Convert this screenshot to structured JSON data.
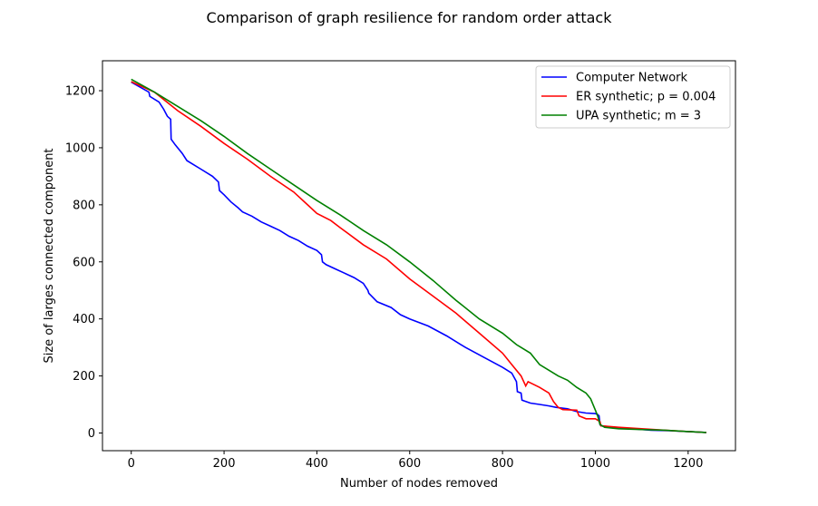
{
  "chart_data": {
    "type": "line",
    "title": "Comparison of graph resilience for random order attack",
    "xlabel": "Number of nodes removed",
    "ylabel": "Size of larges connected component",
    "xlim": [
      -62,
      1302
    ],
    "ylim": [
      -62,
      1305
    ],
    "xticks": [
      0,
      200,
      400,
      600,
      800,
      1000,
      1200
    ],
    "yticks": [
      0,
      200,
      400,
      600,
      800,
      1000,
      1200
    ],
    "grid": false,
    "legend_position": "top-right",
    "series": [
      {
        "name": "Computer Network",
        "color": "#0000ff",
        "x": [
          0,
          38,
          40,
          60,
          70,
          78,
          85,
          86,
          95,
          110,
          120,
          150,
          175,
          188,
          190,
          200,
          215,
          230,
          240,
          260,
          280,
          300,
          320,
          340,
          360,
          380,
          400,
          410,
          412,
          420,
          440,
          460,
          480,
          500,
          510,
          512,
          530,
          560,
          580,
          600,
          640,
          680,
          720,
          760,
          800,
          820,
          830,
          832,
          840,
          842,
          860,
          880,
          900,
          915,
          940,
          960,
          980,
          1000,
          1005,
          1008,
          1010,
          1012,
          1040,
          1080,
          1120,
          1160,
          1200,
          1239
        ],
        "y": [
          1230,
          1195,
          1180,
          1160,
          1135,
          1110,
          1100,
          1030,
          1010,
          980,
          955,
          925,
          900,
          880,
          850,
          835,
          810,
          790,
          775,
          760,
          740,
          725,
          710,
          690,
          675,
          655,
          640,
          625,
          600,
          590,
          575,
          560,
          545,
          525,
          500,
          490,
          460,
          440,
          415,
          400,
          375,
          340,
          300,
          265,
          230,
          210,
          180,
          145,
          140,
          115,
          105,
          100,
          95,
          90,
          85,
          75,
          70,
          68,
          65,
          60,
          30,
          25,
          20,
          15,
          10,
          8,
          5,
          2
        ]
      },
      {
        "name": "ER synthetic; p = 0.004",
        "color": "#ff0000",
        "x": [
          0,
          50,
          100,
          150,
          200,
          250,
          300,
          350,
          380,
          400,
          430,
          450,
          500,
          550,
          600,
          650,
          700,
          750,
          800,
          820,
          840,
          850,
          855,
          880,
          900,
          910,
          920,
          930,
          960,
          965,
          980,
          1000,
          1010,
          1012,
          1050,
          1100,
          1150,
          1200,
          1239
        ],
        "y": [
          1232,
          1195,
          1130,
          1075,
          1015,
          960,
          900,
          845,
          800,
          770,
          745,
          720,
          660,
          610,
          540,
          480,
          420,
          350,
          280,
          240,
          200,
          165,
          180,
          160,
          140,
          110,
          90,
          82,
          80,
          60,
          50,
          50,
          40,
          25,
          20,
          15,
          10,
          5,
          2
        ]
      },
      {
        "name": "UPA synthetic; m = 3",
        "color": "#008000",
        "x": [
          0,
          50,
          100,
          150,
          200,
          250,
          300,
          350,
          400,
          450,
          500,
          550,
          600,
          650,
          700,
          750,
          800,
          830,
          860,
          880,
          900,
          920,
          940,
          960,
          980,
          990,
          1000,
          1005,
          1010,
          1020,
          1050,
          1100,
          1150,
          1200,
          1239
        ],
        "y": [
          1240,
          1195,
          1145,
          1095,
          1040,
          980,
          925,
          870,
          815,
          765,
          710,
          660,
          600,
          535,
          465,
          400,
          350,
          310,
          280,
          240,
          220,
          200,
          185,
          160,
          140,
          120,
          80,
          60,
          30,
          20,
          15,
          12,
          10,
          5,
          2
        ]
      }
    ]
  }
}
